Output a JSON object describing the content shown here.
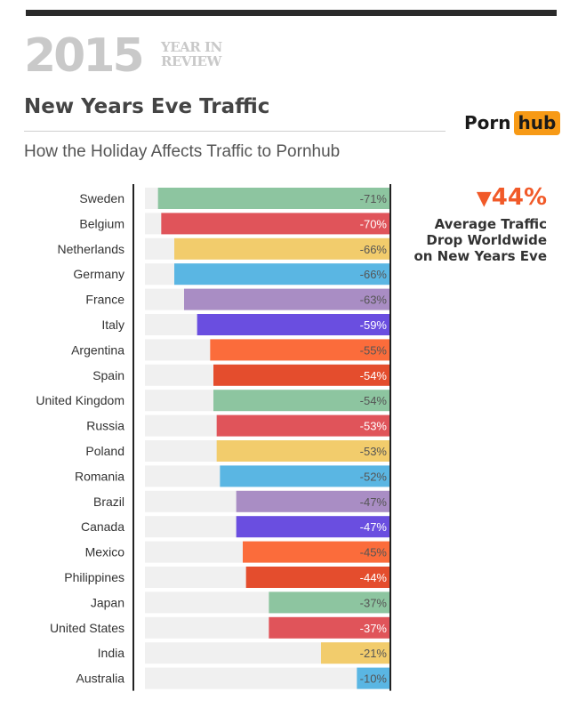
{
  "header": {
    "year": "2015",
    "year_in": "YEAR IN",
    "review": "REVIEW",
    "title": "New Years Eve Traffic",
    "subtitle": "How the Holiday Affects Traffic to Pornhub",
    "logo_left": "Porn",
    "logo_right": "hub"
  },
  "callout": {
    "value": "44%",
    "arrow": "▼",
    "line1": "Average Traffic",
    "line2": "Drop Worldwide",
    "line3": "on New Years Eve"
  },
  "chart_data": {
    "type": "bar",
    "orientation": "horizontal",
    "categories": [
      "Sweden",
      "Belgium",
      "Netherlands",
      "Germany",
      "France",
      "Italy",
      "Argentina",
      "Spain",
      "United Kingdom",
      "Russia",
      "Poland",
      "Romania",
      "Brazil",
      "Canada",
      "Mexico",
      "Philippines",
      "Japan",
      "United States",
      "India",
      "Australia"
    ],
    "values": [
      -71,
      -70,
      -66,
      -66,
      -63,
      -59,
      -55,
      -54,
      -54,
      -53,
      -53,
      -52,
      -47,
      -47,
      -45,
      -44,
      -37,
      -37,
      -21,
      -10
    ],
    "labels": [
      "-71%",
      "-70%",
      "-66%",
      "-66%",
      "-63%",
      "-59%",
      "-55%",
      "-54%",
      "-54%",
      "-53%",
      "-53%",
      "-52%",
      "-47%",
      "-47%",
      "-45%",
      "-44%",
      "-37%",
      "-37%",
      "-21%",
      "-10%"
    ],
    "colors": [
      "#8dc5a0",
      "#e0545a",
      "#f2cc6c",
      "#5ab6e3",
      "#a98dc4",
      "#6a4ee0",
      "#fb6c3b",
      "#e44d2d",
      "#8dc5a0",
      "#e0545a",
      "#f2cc6c",
      "#5ab6e3",
      "#a98dc4",
      "#6a4ee0",
      "#fb6c3b",
      "#e44d2d",
      "#8dc5a0",
      "#e0545a",
      "#f2cc6c",
      "#5ab6e3"
    ],
    "label_colors": [
      "#555555",
      "#ffffff",
      "#555555",
      "#555555",
      "#555555",
      "#ffffff",
      "#555555",
      "#ffffff",
      "#555555",
      "#ffffff",
      "#555555",
      "#555555",
      "#555555",
      "#ffffff",
      "#555555",
      "#ffffff",
      "#555555",
      "#ffffff",
      "#555555",
      "#555555"
    ],
    "track_color": "#f0f0f0",
    "xlim": [
      -75,
      0
    ],
    "grid": false
  }
}
